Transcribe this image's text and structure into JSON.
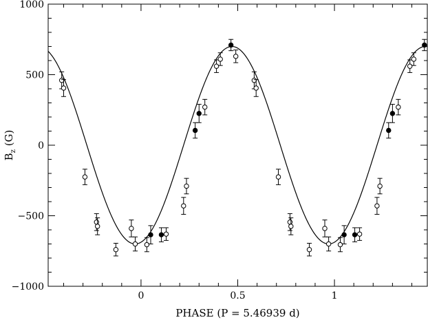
{
  "chart_data": {
    "type": "scatter",
    "xlabel": "PHASE (P = 5.46939 d)",
    "ylabel": "B",
    "ylabel_subscript": "z",
    "ylabel_unit": "(G)",
    "xlim": [
      -0.48,
      1.48
    ],
    "ylim": [
      -1000,
      1000
    ],
    "x_ticks": [
      0,
      0.5,
      1
    ],
    "x_tick_labels": [
      "0",
      "0.5",
      "1"
    ],
    "y_ticks": [
      -1000,
      -500,
      0,
      500,
      1000
    ],
    "y_tick_labels": [
      "−1000",
      "−500",
      "0",
      "500",
      "1000"
    ],
    "grid": false,
    "legend": "none",
    "fit_curve": {
      "description_free": true,
      "mean": 0,
      "amplitude": 700,
      "phase_of_max": 0.47
    },
    "series": [
      {
        "marker": "open-circle",
        "points": [
          {
            "x": -0.41,
            "y": 460,
            "err": 60
          },
          {
            "x": -0.4,
            "y": 405,
            "err": 60
          },
          {
            "x": -0.29,
            "y": -225,
            "err": 55
          },
          {
            "x": -0.23,
            "y": -545,
            "err": 60
          },
          {
            "x": -0.225,
            "y": -575,
            "err": 60
          },
          {
            "x": -0.13,
            "y": -740,
            "err": 45
          },
          {
            "x": -0.05,
            "y": -590,
            "err": 60
          },
          {
            "x": -0.03,
            "y": -700,
            "err": 50
          },
          {
            "x": 0.03,
            "y": -705,
            "err": 50
          },
          {
            "x": 0.13,
            "y": -630,
            "err": 45
          },
          {
            "x": 0.22,
            "y": -430,
            "err": 60
          },
          {
            "x": 0.235,
            "y": -290,
            "err": 55
          },
          {
            "x": 0.33,
            "y": 270,
            "err": 55
          },
          {
            "x": 0.39,
            "y": 560,
            "err": 45
          },
          {
            "x": 0.41,
            "y": 610,
            "err": 45
          },
          {
            "x": 0.49,
            "y": 630,
            "err": 45
          },
          {
            "x": 0.585,
            "y": 460,
            "err": 60
          },
          {
            "x": 0.595,
            "y": 405,
            "err": 60
          },
          {
            "x": 0.71,
            "y": -225,
            "err": 55
          },
          {
            "x": 0.77,
            "y": -545,
            "err": 60
          },
          {
            "x": 0.775,
            "y": -575,
            "err": 60
          },
          {
            "x": 0.87,
            "y": -740,
            "err": 45
          },
          {
            "x": 0.95,
            "y": -590,
            "err": 60
          },
          {
            "x": 0.97,
            "y": -700,
            "err": 50
          },
          {
            "x": 1.03,
            "y": -705,
            "err": 50
          },
          {
            "x": 1.13,
            "y": -630,
            "err": 45
          },
          {
            "x": 1.22,
            "y": -430,
            "err": 60
          },
          {
            "x": 1.235,
            "y": -290,
            "err": 55
          },
          {
            "x": 1.33,
            "y": 270,
            "err": 55
          },
          {
            "x": 1.39,
            "y": 560,
            "err": 45
          },
          {
            "x": 1.41,
            "y": 610,
            "err": 45
          },
          {
            "x": 1.49,
            "y": 630,
            "err": 45
          }
        ]
      },
      {
        "marker": "filled-circle",
        "points": [
          {
            "x": 0.05,
            "y": -635,
            "err": 65
          },
          {
            "x": 0.105,
            "y": -635,
            "err": 50
          },
          {
            "x": 0.28,
            "y": 105,
            "err": 55
          },
          {
            "x": 0.3,
            "y": 225,
            "err": 65
          },
          {
            "x": 0.465,
            "y": 710,
            "err": 40
          },
          {
            "x": 1.05,
            "y": -635,
            "err": 65
          },
          {
            "x": 1.105,
            "y": -635,
            "err": 50
          },
          {
            "x": 1.28,
            "y": 105,
            "err": 55
          },
          {
            "x": 1.3,
            "y": 225,
            "err": 65
          },
          {
            "x": 1.465,
            "y": 710,
            "err": 40
          }
        ]
      }
    ]
  }
}
